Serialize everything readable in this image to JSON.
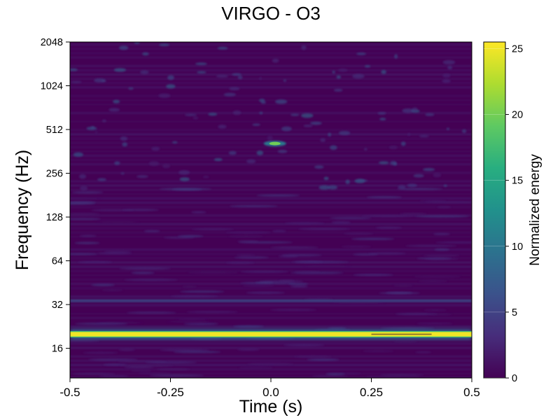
{
  "chart_data": {
    "type": "heatmap",
    "title": "VIRGO - O3",
    "xlabel": "Time (s)",
    "ylabel": "Frequency (Hz)",
    "x_range": [
      -0.5,
      0.5
    ],
    "x_ticks": [
      -0.5,
      -0.25,
      0.0,
      0.25,
      0.5
    ],
    "x_tick_labels": [
      "-0.5",
      "-0.25",
      "0.0",
      "0.25",
      "0.5"
    ],
    "y_scale": "log2",
    "y_range": [
      10,
      2048
    ],
    "y_ticks": [
      16,
      32,
      64,
      128,
      256,
      512,
      1024,
      2048
    ],
    "y_tick_labels": [
      "16",
      "32",
      "64",
      "128",
      "256",
      "512",
      "1024",
      "2048"
    ],
    "colormap": "viridis",
    "colorbar": {
      "label": "Normalized energy",
      "range": [
        0,
        25.5
      ],
      "ticks": [
        0,
        5,
        10,
        15,
        20,
        25
      ],
      "tick_labels": [
        "0",
        "5",
        "10",
        "15",
        "20",
        "25"
      ]
    },
    "features": [
      {
        "kind": "line",
        "frequency_hz": 20,
        "time_range": [
          -0.5,
          0.5
        ],
        "energy": 25
      },
      {
        "kind": "blob",
        "time_s": 0.01,
        "frequency_hz": 410,
        "energy": 20
      },
      {
        "kind": "line",
        "frequency_hz": 34,
        "time_range": [
          -0.5,
          0.5
        ],
        "energy": 7
      }
    ],
    "grid": false
  }
}
